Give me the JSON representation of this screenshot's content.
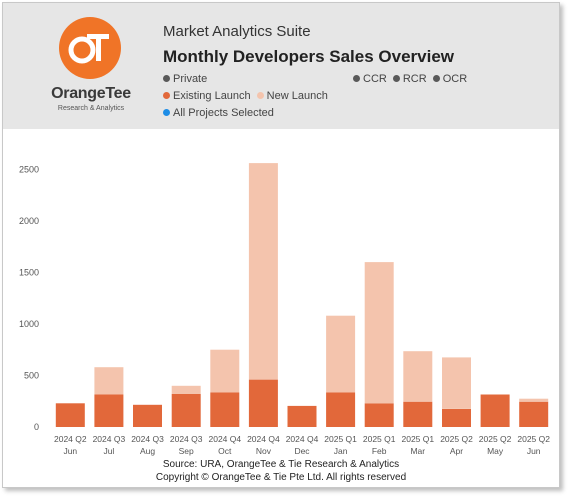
{
  "header": {
    "suite_title": "Market Analytics Suite",
    "report_title": "Monthly Developers Sales Overview",
    "logo_text": "OrangeTee",
    "logo_subtext": "Research & Analytics",
    "logo_monogram": "OT",
    "filters": {
      "segment": "Private",
      "regions": [
        "CCR",
        "RCR",
        "OCR"
      ],
      "launch_types": [
        "Existing Launch",
        "New Launch"
      ],
      "projects": "All Projects Selected"
    }
  },
  "colors": {
    "existing_launch": "#e2683a",
    "new_launch": "#f4c4ad",
    "filter_dot": "#595959",
    "projects_dot": "#1e8de6",
    "logo": "#f07427"
  },
  "chart_data": {
    "type": "bar",
    "stacked": true,
    "categories": [
      [
        "2024 Q2",
        "Jun"
      ],
      [
        "2024 Q3",
        "Jul"
      ],
      [
        "2024 Q3",
        "Aug"
      ],
      [
        "2024 Q3",
        "Sep"
      ],
      [
        "2024 Q4",
        "Oct"
      ],
      [
        "2024 Q4",
        "Nov"
      ],
      [
        "2024 Q4",
        "Dec"
      ],
      [
        "2025 Q1",
        "Jan"
      ],
      [
        "2025 Q1",
        "Feb"
      ],
      [
        "2025 Q1",
        "Mar"
      ],
      [
        "2025 Q2",
        "Apr"
      ],
      [
        "2025 Q2",
        "May"
      ],
      [
        "2025 Q2",
        "Jun"
      ]
    ],
    "series": [
      {
        "name": "Existing Launch",
        "values": [
          230,
          315,
          215,
          320,
          335,
          460,
          205,
          335,
          230,
          245,
          175,
          315,
          245
        ]
      },
      {
        "name": "New Launch",
        "values": [
          0,
          265,
          0,
          80,
          415,
          2100,
          0,
          745,
          1370,
          490,
          500,
          0,
          30
        ]
      }
    ],
    "yticks": [
      0,
      500,
      1000,
      1500,
      2000,
      2500
    ],
    "ylim": [
      0,
      2600
    ],
    "grid": false,
    "legend": "top-left"
  },
  "footer": {
    "source": "Source: URA, OrangeTee & Tie Research & Analytics",
    "copyright": "Copyright © OrangeTee & Tie Pte Ltd. All rights reserved"
  }
}
